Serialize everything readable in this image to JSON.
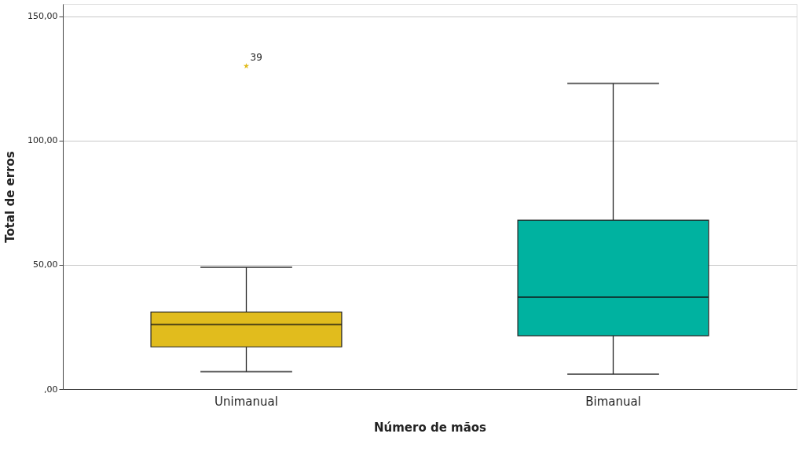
{
  "chart_data": {
    "type": "box",
    "xlabel": "Número de mãos",
    "ylabel": "Total de erros",
    "categories": [
      "Unimanual",
      "Bimanual"
    ],
    "colors": [
      "#e1bc1d",
      "#00b2a0"
    ],
    "boxes": [
      {
        "low": 7,
        "q1": 17,
        "median": 26,
        "q3": 31,
        "high": 49,
        "outliers": [
          130
        ]
      },
      {
        "low": 6,
        "q1": 21.5,
        "median": 37,
        "q3": 68,
        "high": 123
      }
    ],
    "marker": "star",
    "annotations": [
      "39"
    ],
    "ylim": [
      0,
      155
    ],
    "yticks": [
      {
        "value": 0,
        "label": ",00"
      },
      {
        "value": 50,
        "label": "50,00"
      },
      {
        "value": 100,
        "label": "100,00"
      },
      {
        "value": 150,
        "label": "150,00"
      }
    ],
    "grid": "y"
  }
}
